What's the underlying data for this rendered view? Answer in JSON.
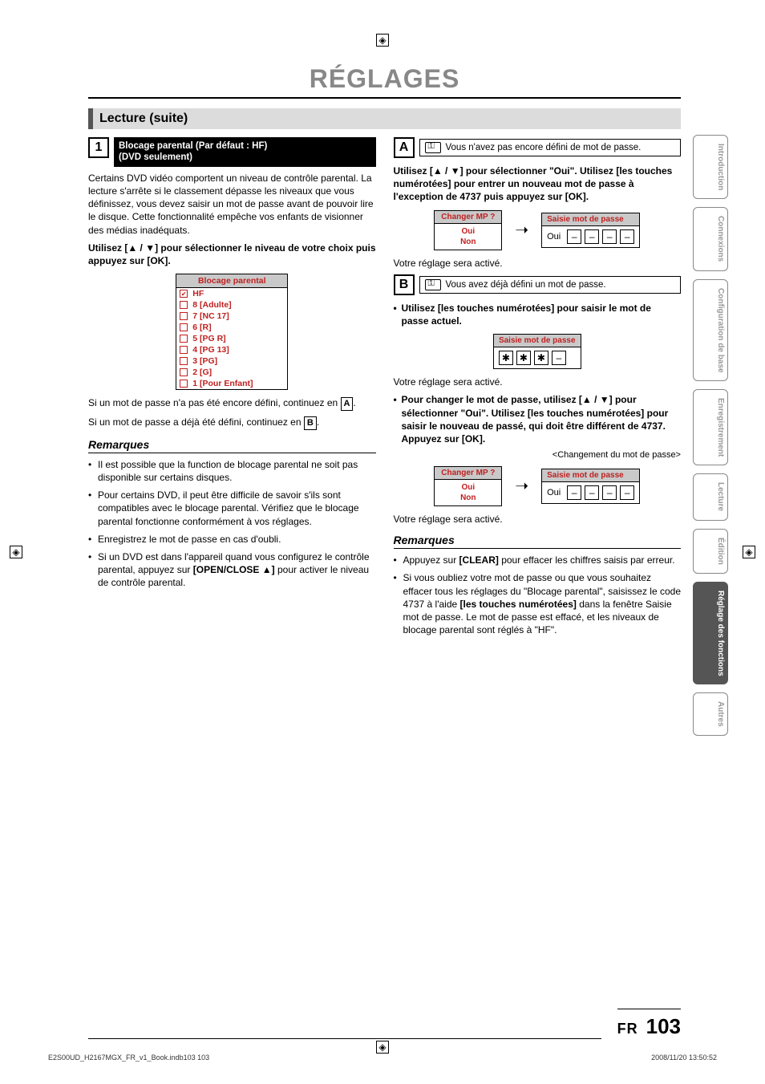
{
  "title": "RÉGLAGES",
  "section_header": "Lecture (suite)",
  "step1": {
    "num": "1",
    "label_line1": "Blocage parental (Par défaut : HF)",
    "label_line2": "(DVD seulement)"
  },
  "left": {
    "intro": "Certains DVD vidéo comportent un niveau de contrôle parental. La lecture s'arrête si le classement dépasse les niveaux que vous définissez, vous devez saisir un mot de passe avant de pouvoir lire le disque. Cette fonctionnalité empêche vos enfants de visionner des médias inadéquats.",
    "instr1": "Utilisez [▲ / ▼] pour sélectionner le niveau de votre choix puis appuyez sur [OK].",
    "blocage_header": "Blocage parental",
    "levels": [
      "HF",
      "8 [Adulte]",
      "7 [NC 17]",
      "6 [R]",
      "5 [PG R]",
      "4 [PG 13]",
      "3 [PG]",
      "2 [G]",
      "1 [Pour Enfant]"
    ],
    "no_pw_a": "Si un mot de passe n'a pas été encore défini, continuez en ",
    "no_pw_a_box": "A",
    "has_pw_b": "Si un mot de passe a déjà été défini, continuez en ",
    "has_pw_b_box": "B",
    "remarques_hdr": "Remarques",
    "rem1": "Il est possible que la function de blocage parental ne soit pas disponible sur certains disques.",
    "rem2": "Pour certains DVD, il peut être difficile de savoir s'ils sont compatibles avec le blocage parental. Vérifiez que le blocage parental fonctionne conformément à vos réglages.",
    "rem3": "Enregistrez le mot de passe en cas d'oubli.",
    "rem4_a": "Si un DVD est dans l'appareil quand vous configurez le contrôle parental, appuyez sur ",
    "rem4_b": "[OPEN/CLOSE ▲]",
    "rem4_c": " pour activer le niveau de contrôle parental."
  },
  "right": {
    "A_box": "A",
    "A_text": "Vous n'avez pas encore défini de mot de passe.",
    "A_instr": "Utilisez [▲ / ▼] pour sélectionner \"Oui\". Utilisez [les touches numérotées] pour entrer un nouveau mot de passe à l'exception de 4737 puis appuyez sur [OK].",
    "changer_hdr": "Changer MP ?",
    "changer_oui": "Oui",
    "changer_non": "Non",
    "saisie_hdr": "Saisie mot de passe",
    "saisie_lead": "Oui",
    "pw_dash": "–",
    "pw_star": "✱",
    "reglage_active": "Votre réglage sera activé.",
    "B_box": "B",
    "B_text": "Vous avez déjà défini un mot de passe.",
    "B_bullet1": "Utilisez [les touches numérotées] pour saisir le mot de passe actuel.",
    "B_bullet2": "Pour changer le mot de passe, utilisez [▲ / ▼] pour sélectionner \"Oui\". Utilisez [les touches numérotées] pour saisir le nouveau de passé, qui doit être différent de 4737. Appuyez sur [OK].",
    "changement_note": "<Changement du mot de passe>",
    "remarques_hdr": "Remarques",
    "rrem1_a": "Appuyez sur ",
    "rrem1_b": "[CLEAR]",
    "rrem1_c": " pour effacer les chiffres saisis par erreur.",
    "rrem2_a": "Si vous oubliez votre mot de passe ou que vous souhaitez effacer tous les réglages du \"Blocage parental\", saisissez le code 4737 à l'aide ",
    "rrem2_b": "[les touches numérotées]",
    "rrem2_c": " dans la fenêtre Saisie mot de passe. Le mot de passe est effacé, et les niveaux de blocage parental sont réglés à \"HF\"."
  },
  "tabs": [
    "Introduction",
    "Connexions",
    "Configuration de base",
    "Enregistrement",
    "Lecture",
    "Édition",
    "Réglage des fonctions",
    "Autres"
  ],
  "active_tab_index": 6,
  "footer": {
    "fr": "FR",
    "page": "103"
  },
  "print_meta": {
    "left": "E2S00UD_H2167MGX_FR_v1_Book.indb103   103",
    "right": "2008/11/20   13:50:52"
  }
}
